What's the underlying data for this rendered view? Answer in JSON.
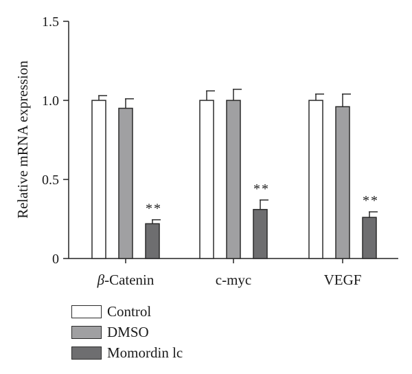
{
  "chart_data": {
    "type": "bar",
    "title": "",
    "xlabel": "",
    "ylabel": "Relative mRNA expression",
    "ylim": [
      0,
      1.5
    ],
    "yticks": [
      0,
      0.5,
      1.0,
      1.5
    ],
    "ytick_labels": [
      "0",
      "0.5",
      "1.0",
      "1.5"
    ],
    "categories": [
      "β-Catenin",
      "c-myc",
      "VEGF"
    ],
    "category_prefix_italic": [
      "β",
      "",
      ""
    ],
    "category_rest": [
      "-Catenin",
      "c-myc",
      "VEGF"
    ],
    "series": [
      {
        "name": "Control",
        "color": "#ffffff",
        "values": [
          1.0,
          1.0,
          1.0
        ],
        "errors": [
          0.03,
          0.06,
          0.04
        ]
      },
      {
        "name": "DMSO",
        "color": "#a0a0a2",
        "values": [
          0.95,
          1.0,
          0.96
        ],
        "errors": [
          0.06,
          0.07,
          0.08
        ]
      },
      {
        "name": "Momordin lc",
        "color": "#6e6e70",
        "values": [
          0.22,
          0.31,
          0.26
        ],
        "errors": [
          0.025,
          0.06,
          0.035
        ]
      }
    ],
    "significance": [
      {
        "category": "β-Catenin",
        "series": "Momordin lc",
        "label": "**"
      },
      {
        "category": "c-myc",
        "series": "Momordin lc",
        "label": "**"
      },
      {
        "category": "VEGF",
        "series": "Momordin lc",
        "label": "**"
      }
    ],
    "legend_position": "bottom-left",
    "grid": false
  }
}
